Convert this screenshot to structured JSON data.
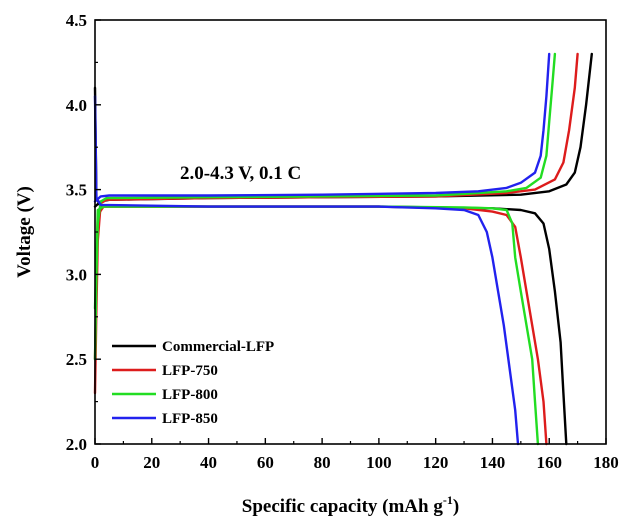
{
  "chart_data": {
    "type": "line",
    "title": "",
    "xlabel": "Specific capacity (mAh g",
    "xlabel_sup": "-1",
    "xlabel_close": ")",
    "ylabel": "Voltage (V)",
    "xlim": [
      0,
      180
    ],
    "ylim": [
      2.0,
      4.5
    ],
    "xticks": [
      0,
      20,
      40,
      60,
      80,
      100,
      120,
      140,
      160,
      180
    ],
    "yticks": [
      2.0,
      2.5,
      3.0,
      3.5,
      4.0,
      4.5
    ],
    "ytick_labels": [
      "2.0",
      "2.5",
      "3.0",
      "3.5",
      "4.0",
      "4.5"
    ],
    "grid": false,
    "legend_position": "bottom-left",
    "annotation": "2.0-4.3 V, 0.1 C",
    "series": [
      {
        "name": "Commercial-LFP",
        "color": "#000000",
        "charge": [
          [
            0,
            3.4
          ],
          [
            2,
            3.43
          ],
          [
            5,
            3.44
          ],
          [
            40,
            3.45
          ],
          [
            80,
            3.455
          ],
          [
            120,
            3.46
          ],
          [
            150,
            3.47
          ],
          [
            160,
            3.49
          ],
          [
            166,
            3.53
          ],
          [
            169,
            3.6
          ],
          [
            171,
            3.75
          ],
          [
            173,
            4.0
          ],
          [
            175,
            4.3
          ]
        ],
        "discharge": [
          [
            0,
            4.1
          ],
          [
            0.5,
            3.45
          ],
          [
            2,
            3.4
          ],
          [
            40,
            3.4
          ],
          [
            100,
            3.4
          ],
          [
            140,
            3.39
          ],
          [
            150,
            3.38
          ],
          [
            155,
            3.36
          ],
          [
            158,
            3.3
          ],
          [
            160,
            3.15
          ],
          [
            162,
            2.9
          ],
          [
            164,
            2.6
          ],
          [
            165,
            2.3
          ],
          [
            166,
            2.0
          ]
        ]
      },
      {
        "name": "LFP-750",
        "color": "#dd1c1c",
        "charge": [
          [
            0,
            2.3
          ],
          [
            0.5,
            2.8
          ],
          [
            1,
            3.2
          ],
          [
            2,
            3.42
          ],
          [
            4,
            3.44
          ],
          [
            40,
            3.45
          ],
          [
            80,
            3.455
          ],
          [
            120,
            3.46
          ],
          [
            145,
            3.48
          ],
          [
            155,
            3.5
          ],
          [
            162,
            3.56
          ],
          [
            165,
            3.66
          ],
          [
            167,
            3.85
          ],
          [
            169,
            4.1
          ],
          [
            170,
            4.3
          ]
        ],
        "discharge": [
          [
            0,
            2.5
          ],
          [
            1,
            3.35
          ],
          [
            3,
            3.4
          ],
          [
            40,
            3.4
          ],
          [
            100,
            3.4
          ],
          [
            130,
            3.39
          ],
          [
            140,
            3.37
          ],
          [
            145,
            3.35
          ],
          [
            148,
            3.28
          ],
          [
            150,
            3.1
          ],
          [
            152,
            2.9
          ],
          [
            154,
            2.7
          ],
          [
            156,
            2.5
          ],
          [
            158,
            2.25
          ],
          [
            159,
            2.0
          ]
        ]
      },
      {
        "name": "LFP-800",
        "color": "#22dd22",
        "charge": [
          [
            0,
            2.5
          ],
          [
            0.5,
            3.0
          ],
          [
            1,
            3.3
          ],
          [
            2,
            3.43
          ],
          [
            4,
            3.45
          ],
          [
            40,
            3.455
          ],
          [
            80,
            3.46
          ],
          [
            120,
            3.465
          ],
          [
            145,
            3.49
          ],
          [
            152,
            3.51
          ],
          [
            157,
            3.57
          ],
          [
            159,
            3.7
          ],
          [
            160,
            3.9
          ],
          [
            161,
            4.1
          ],
          [
            162,
            4.3
          ]
        ],
        "discharge": [
          [
            0,
            2.8
          ],
          [
            1,
            3.38
          ],
          [
            3,
            3.4
          ],
          [
            40,
            3.4
          ],
          [
            100,
            3.4
          ],
          [
            130,
            3.395
          ],
          [
            140,
            3.39
          ],
          [
            145,
            3.38
          ],
          [
            147,
            3.3
          ],
          [
            148,
            3.1
          ],
          [
            150,
            2.9
          ],
          [
            152,
            2.7
          ],
          [
            154,
            2.5
          ],
          [
            155,
            2.25
          ],
          [
            156,
            2.0
          ]
        ]
      },
      {
        "name": "LFP-850",
        "color": "#2222ee",
        "charge": [
          [
            0,
            3.43
          ],
          [
            2,
            3.46
          ],
          [
            5,
            3.465
          ],
          [
            40,
            3.465
          ],
          [
            80,
            3.47
          ],
          [
            120,
            3.48
          ],
          [
            135,
            3.49
          ],
          [
            145,
            3.51
          ],
          [
            150,
            3.54
          ],
          [
            155,
            3.6
          ],
          [
            157,
            3.7
          ],
          [
            158,
            3.85
          ],
          [
            159,
            4.05
          ],
          [
            160,
            4.3
          ]
        ],
        "discharge": [
          [
            0,
            4.05
          ],
          [
            0.5,
            3.45
          ],
          [
            2,
            3.41
          ],
          [
            40,
            3.4
          ],
          [
            100,
            3.4
          ],
          [
            120,
            3.39
          ],
          [
            130,
            3.38
          ],
          [
            135,
            3.35
          ],
          [
            138,
            3.25
          ],
          [
            140,
            3.1
          ],
          [
            142,
            2.9
          ],
          [
            144,
            2.7
          ],
          [
            146,
            2.45
          ],
          [
            148,
            2.2
          ],
          [
            149,
            2.0
          ]
        ]
      }
    ]
  }
}
